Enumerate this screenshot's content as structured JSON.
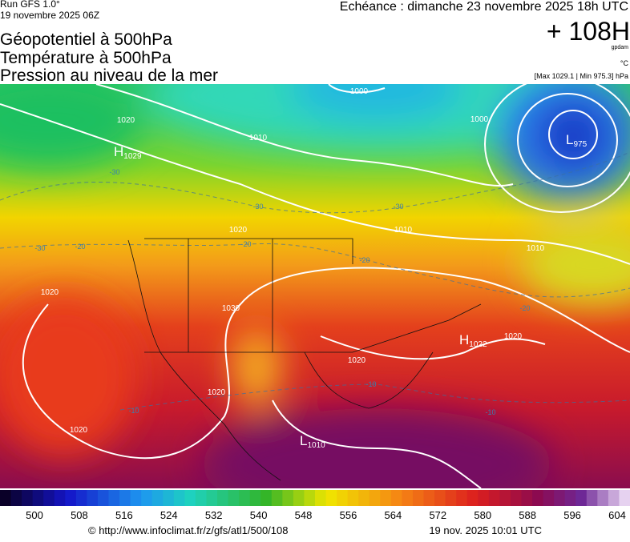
{
  "header": {
    "run": "Run GFS 1.0°",
    "run_date": "19 novembre 2025 06Z",
    "forecast": "Echéance : dimanche 23 novembre 2025 18h UTC",
    "titles": [
      "Géopotentiel à 500hPa",
      "Température à 500hPa",
      "Pression au niveau de la mer"
    ],
    "lead": "+ 108H",
    "unit_geo": "gpdam",
    "unit_temp": "°C",
    "range": "[Max 1029.1 | Min 975.3] hPa"
  },
  "map": {
    "centers": [
      {
        "letter": "H",
        "value": "1029"
      },
      {
        "letter": "L",
        "value": "975"
      },
      {
        "letter": "H",
        "value": "1022"
      },
      {
        "letter": "L",
        "value": "1010"
      }
    ],
    "isobar_labels": [
      "1000",
      "1000",
      "1010",
      "1010",
      "1010",
      "1020",
      "1020",
      "1020",
      "1020",
      "1020",
      "1020",
      "1020",
      "1030"
    ],
    "temp_labels": [
      "-30",
      "-30",
      "-30",
      "-30",
      "-20",
      "-20",
      "-20",
      "-20",
      "-10",
      "-10",
      "-10"
    ]
  },
  "scale": {
    "ticks": [
      500,
      508,
      516,
      524,
      532,
      540,
      548,
      556,
      564,
      572,
      580,
      588,
      596,
      604
    ]
  },
  "footer": {
    "url": "© http://www.infoclimat.fr/z/gfs/atl1/500/108",
    "timestamp": "19 nov. 2025 10:01 UTC"
  }
}
